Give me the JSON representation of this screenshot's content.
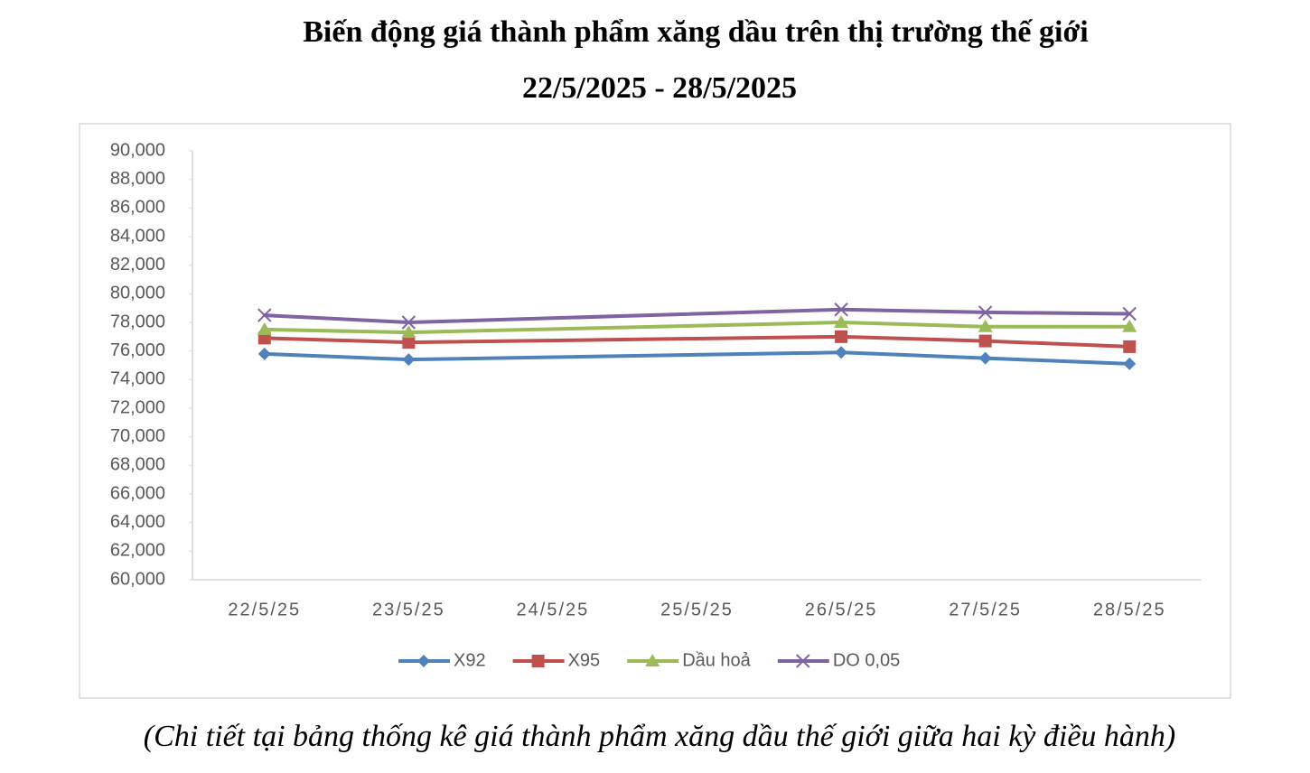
{
  "chart_data": {
    "type": "line",
    "title": "Biến động giá thành phẩm xăng dầu trên thị trường thế giới",
    "subtitle": "22/5/2025 - 28/5/2025",
    "footnote": "(Chi tiết tại bảng thống kê giá thành phẩm xăng dầu thế giới giữa hai kỳ điều hành)",
    "categories": [
      "22/5/25",
      "23/5/25",
      "24/5/25",
      "25/5/25",
      "26/5/25",
      "27/5/25",
      "28/5/25"
    ],
    "span_gaps": true,
    "series": [
      {
        "name": "X92",
        "color": "#4f81bd",
        "marker": "diamond",
        "values": [
          75800,
          75400,
          null,
          null,
          75900,
          75500,
          75100
        ]
      },
      {
        "name": "X95",
        "color": "#c0504d",
        "marker": "square",
        "values": [
          76900,
          76600,
          null,
          null,
          77000,
          76700,
          76300
        ]
      },
      {
        "name": "Dầu hoả",
        "color": "#9bbb59",
        "marker": "triangle",
        "values": [
          77500,
          77300,
          null,
          null,
          78000,
          77700,
          77700
        ]
      },
      {
        "name": "DO 0,05",
        "color": "#8064a2",
        "marker": "x",
        "values": [
          78500,
          78000,
          null,
          null,
          78900,
          78700,
          78600
        ]
      }
    ],
    "ylim": [
      60000,
      90000
    ],
    "yticks": [
      {
        "value": 60000,
        "label": "60,000"
      },
      {
        "value": 62000,
        "label": "62,000"
      },
      {
        "value": 64000,
        "label": "64,000"
      },
      {
        "value": 66000,
        "label": "66,000"
      },
      {
        "value": 68000,
        "label": "68,000"
      },
      {
        "value": 70000,
        "label": "70,000"
      },
      {
        "value": 72000,
        "label": "72,000"
      },
      {
        "value": 74000,
        "label": "74,000"
      },
      {
        "value": 76000,
        "label": "76,000"
      },
      {
        "value": 78000,
        "label": "78,000"
      },
      {
        "value": 80000,
        "label": "80,000"
      },
      {
        "value": 82000,
        "label": "82,000"
      },
      {
        "value": 84000,
        "label": "84,000"
      },
      {
        "value": 86000,
        "label": "86,000"
      },
      {
        "value": 88000,
        "label": "88,000"
      },
      {
        "value": 90000,
        "label": "90,000"
      }
    ],
    "grid": false,
    "legend": "bottom"
  }
}
